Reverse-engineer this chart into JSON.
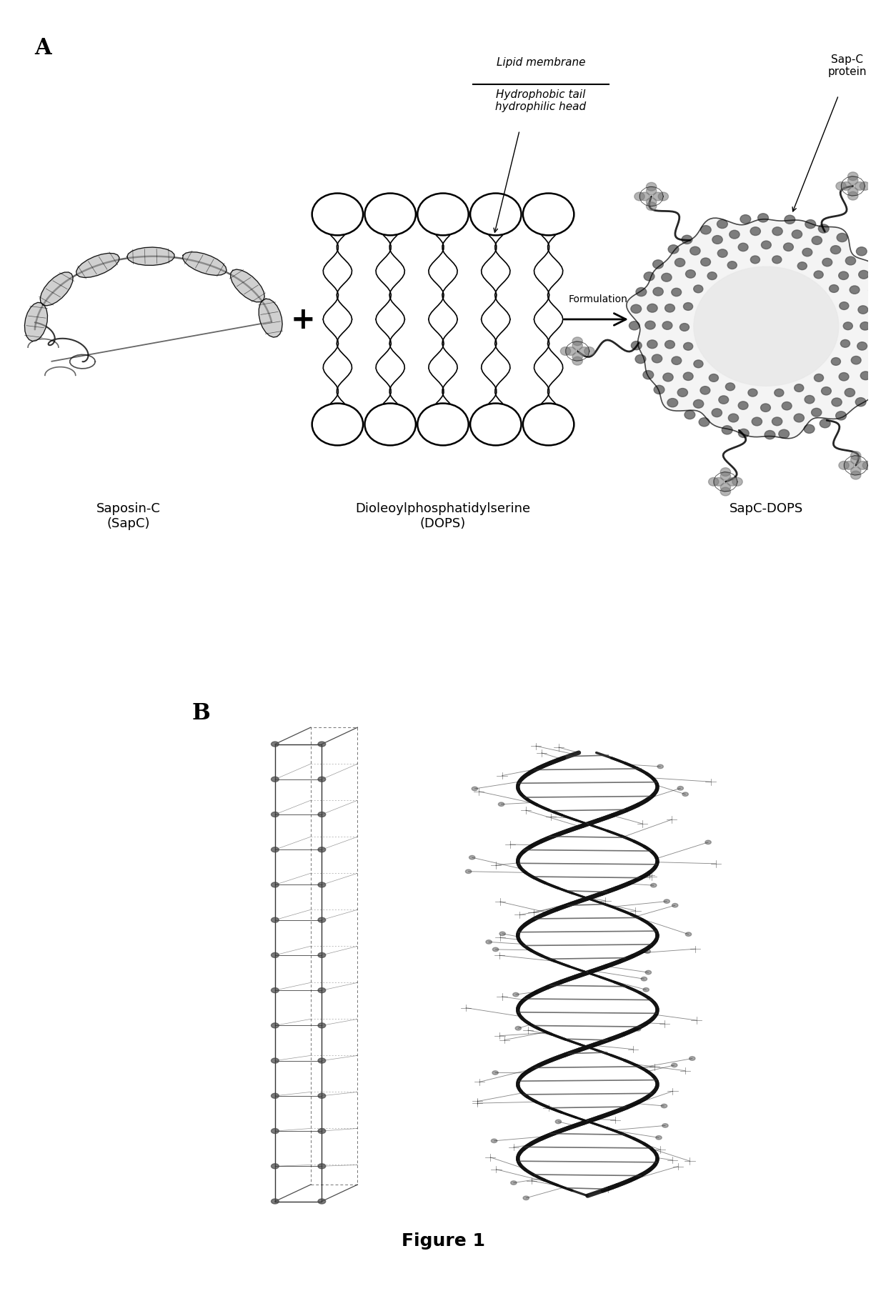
{
  "background_color": "#ffffff",
  "panel_a_label": "A",
  "panel_b_label": "B",
  "figure_caption": "Figure 1",
  "label_saposin": "Saposin-C\n(SapC)",
  "label_dops": "Dioleoylphosphatidylserine\n(DOPS)",
  "label_sapc_dops": "SapC-DOPS",
  "label_lipid_membrane": "Lipid membrane",
  "label_hydrophobic": "Hydrophobic tail\nhydrophilic head",
  "label_sapc_protein": "Sap-C\nprotein",
  "label_formulation": "Formulation",
  "font_size_label": 18,
  "font_size_sublabel": 13,
  "font_size_caption": 18,
  "font_size_annotation": 11,
  "figure_width": 12.4,
  "figure_height": 18.15
}
